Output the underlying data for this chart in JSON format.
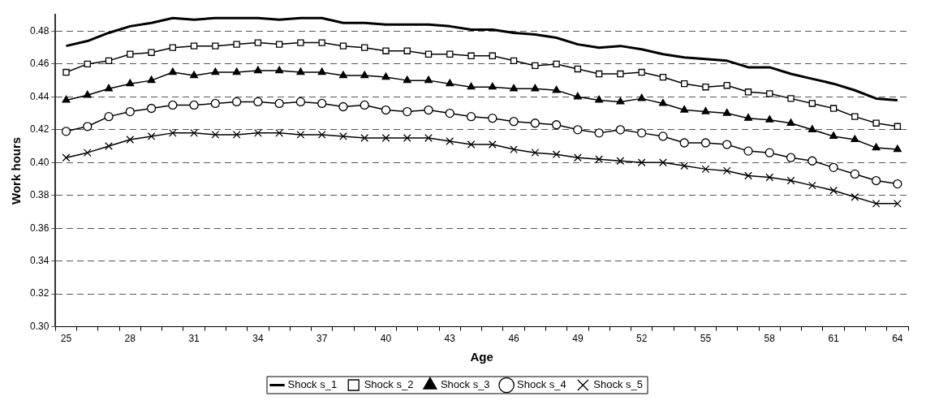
{
  "chart_data": {
    "type": "line",
    "xlabel": "Age",
    "ylabel": "Work hours",
    "categories": [
      "25",
      null,
      null,
      "28",
      null,
      null,
      "31",
      null,
      null,
      "34",
      null,
      null,
      "37",
      null,
      null,
      "40",
      null,
      null,
      "43",
      null,
      null,
      "46",
      null,
      null,
      "49",
      null,
      null,
      "52",
      null,
      null,
      "55",
      null,
      null,
      "58",
      null,
      null,
      "61",
      null,
      null,
      "64"
    ],
    "ylim": [
      0.3,
      0.49
    ],
    "yticks": [
      {
        "value": 0.3,
        "label": "0.30"
      },
      0.32,
      0.34,
      0.36,
      0.38,
      {
        "value": 0.4,
        "label": "0.40"
      },
      0.42,
      0.44,
      0.46,
      0.48
    ],
    "grid": "y",
    "line_style": "solid",
    "legend": "bottom",
    "series": [
      {
        "name": "Shock s_1",
        "color": "#000000",
        "marker": "none",
        "values": [
          0.471,
          0.474,
          0.479,
          0.483,
          0.485,
          0.488,
          0.487,
          0.488,
          0.488,
          0.488,
          0.487,
          0.488,
          0.488,
          0.485,
          0.485,
          0.484,
          0.484,
          0.484,
          0.483,
          0.481,
          0.481,
          0.479,
          0.478,
          0.476,
          0.472,
          0.47,
          0.471,
          0.469,
          0.466,
          0.464,
          0.463,
          0.462,
          0.458,
          0.458,
          0.454,
          0.451,
          0.448,
          0.444,
          0.439,
          0.438
        ]
      },
      {
        "name": "Shock s_2",
        "color": "#000000",
        "marker": "square",
        "values": [
          0.455,
          0.46,
          0.462,
          0.466,
          0.467,
          0.47,
          0.471,
          0.471,
          0.472,
          0.473,
          0.472,
          0.473,
          0.473,
          0.471,
          0.47,
          0.468,
          0.468,
          0.466,
          0.466,
          0.465,
          0.465,
          0.462,
          0.459,
          0.46,
          0.457,
          0.454,
          0.454,
          0.455,
          0.452,
          0.448,
          0.446,
          0.447,
          0.443,
          0.442,
          0.439,
          0.436,
          0.433,
          0.428,
          0.424,
          0.422
        ]
      },
      {
        "name": "Shock s_3",
        "color": "#000000",
        "marker": "triangle",
        "values": [
          0.438,
          0.441,
          0.445,
          0.448,
          0.45,
          0.455,
          0.453,
          0.455,
          0.455,
          0.456,
          0.456,
          0.455,
          0.455,
          0.453,
          0.453,
          0.452,
          0.45,
          0.45,
          0.448,
          0.446,
          0.446,
          0.445,
          0.445,
          0.444,
          0.44,
          0.438,
          0.437,
          0.439,
          0.436,
          0.432,
          0.431,
          0.43,
          0.427,
          0.426,
          0.424,
          0.42,
          0.416,
          0.414,
          0.409,
          0.408
        ]
      },
      {
        "name": "Shock s_4",
        "color": "#000000",
        "marker": "circle",
        "values": [
          0.419,
          0.422,
          0.428,
          0.431,
          0.433,
          0.435,
          0.435,
          0.436,
          0.437,
          0.437,
          0.436,
          0.437,
          0.436,
          0.434,
          0.435,
          0.432,
          0.431,
          0.432,
          0.43,
          0.428,
          0.427,
          0.425,
          0.424,
          0.423,
          0.42,
          0.418,
          0.42,
          0.418,
          0.416,
          0.412,
          0.412,
          0.411,
          0.407,
          0.406,
          0.403,
          0.401,
          0.397,
          0.393,
          0.389,
          0.387
        ]
      },
      {
        "name": "Shock s_5",
        "color": "#000000",
        "marker": "cross",
        "values": [
          0.403,
          0.406,
          0.41,
          0.414,
          0.416,
          0.418,
          0.418,
          0.417,
          0.417,
          0.418,
          0.418,
          0.417,
          0.417,
          0.416,
          0.415,
          0.415,
          0.415,
          0.415,
          0.413,
          0.411,
          0.411,
          0.408,
          0.406,
          0.405,
          0.403,
          0.402,
          0.401,
          0.4,
          0.4,
          0.398,
          0.396,
          0.395,
          0.392,
          0.391,
          0.389,
          0.386,
          0.383,
          0.379,
          0.375,
          0.375
        ]
      }
    ]
  }
}
